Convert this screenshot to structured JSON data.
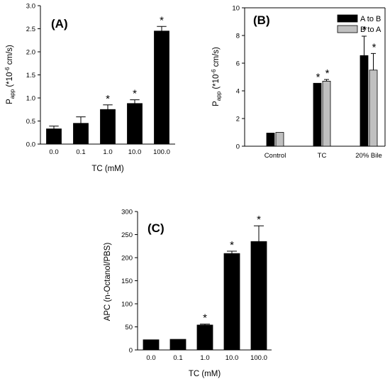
{
  "chart_data": [
    {
      "id": "A",
      "type": "bar",
      "panel_label": "(A)",
      "xlabel": "TC (mM)",
      "ylabel_main": "P",
      "ylabel_sub": "app",
      "ylabel_rest": " (*10",
      "ylabel_sup": "-6",
      "ylabel_unit": " cm/s)",
      "ylim": [
        0,
        3.0
      ],
      "yticks": [
        "0.0",
        "0.5",
        "1.0",
        "1.5",
        "2.0",
        "2.5",
        "3.0"
      ],
      "categories": [
        "0.0",
        "0.1",
        "1.0",
        "10.0",
        "100.0"
      ],
      "series": [
        {
          "color": "#000000",
          "values": [
            0.33,
            0.45,
            0.75,
            0.88,
            2.45
          ],
          "errors": [
            0.06,
            0.14,
            0.1,
            0.08,
            0.1
          ],
          "significant": [
            false,
            false,
            true,
            true,
            true
          ]
        }
      ],
      "significance_marker": "*"
    },
    {
      "id": "B",
      "type": "bar",
      "panel_label": "(B)",
      "xlabel": "",
      "ylabel_main": "P",
      "ylabel_sub": "app",
      "ylabel_rest": " (*10",
      "ylabel_sup": "-6",
      "ylabel_unit": " cm/s)",
      "ylim": [
        0,
        10
      ],
      "yticks": [
        "0",
        "2",
        "4",
        "6",
        "8",
        "10"
      ],
      "categories": [
        "Control",
        "TC",
        "20% Bile"
      ],
      "legend_position": "top-right",
      "series": [
        {
          "name": "A to B",
          "color": "#000000",
          "values": [
            0.95,
            4.55,
            6.55
          ],
          "errors": [
            0.0,
            0.0,
            1.4
          ],
          "significant": [
            false,
            true,
            true
          ]
        },
        {
          "name": "B to A",
          "color": "#c0c0c0",
          "values": [
            1.0,
            4.7,
            5.5
          ],
          "errors": [
            0.0,
            0.12,
            1.2
          ],
          "significant": [
            false,
            true,
            true
          ]
        }
      ],
      "significance_marker": "*"
    },
    {
      "id": "C",
      "type": "bar",
      "panel_label": "(C)",
      "xlabel": "TC (mM)",
      "ylabel_main": "APC (n-Octanol/PBS)",
      "ylim": [
        0,
        300
      ],
      "yticks": [
        "0",
        "50",
        "100",
        "150",
        "200",
        "250",
        "300"
      ],
      "categories": [
        "0.0",
        "0.1",
        "1.0",
        "10.0",
        "100.0"
      ],
      "series": [
        {
          "color": "#000000",
          "values": [
            22,
            23,
            54,
            209,
            235
          ],
          "errors": [
            0,
            0,
            2,
            5,
            34
          ],
          "significant": [
            false,
            false,
            true,
            true,
            true
          ]
        }
      ],
      "significance_marker": "*"
    }
  ]
}
